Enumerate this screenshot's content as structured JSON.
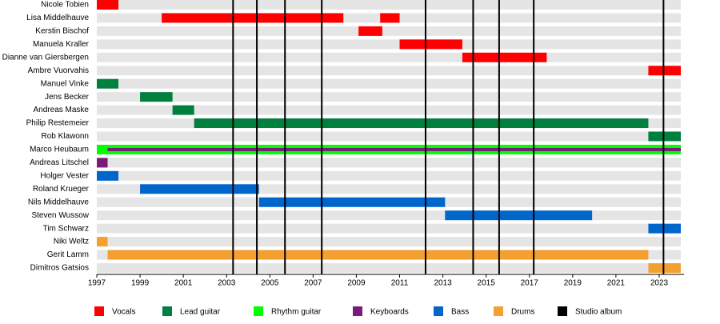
{
  "chart_data": {
    "type": "timeline",
    "categories": [
      "Nicole Tobien",
      "Lisa Middelhauve",
      "Kerstin Bischof",
      "Manuela Kraller",
      "Dianne van Giersbergen",
      "Ambre Vuorvahis",
      "Manuel Vinke",
      "Jens Becker",
      "Andreas Maske",
      "Philip Restemeier",
      "Rob Klawonn",
      "Marco Heubaum",
      "Andreas Litschel",
      "Holger Vester",
      "Roland Krueger",
      "Nils Middelhauve",
      "Steven Wussow",
      "Tim Schwarz",
      "Niki Weltz",
      "Gerit Lamm",
      "Dimitros Gatsios"
    ],
    "xlim": [
      1997,
      2024
    ],
    "xticks": [
      1997,
      1999,
      2001,
      2003,
      2005,
      2007,
      2009,
      2011,
      2013,
      2015,
      2017,
      2019,
      2021,
      2023
    ],
    "series": [
      {
        "name": "Vocals",
        "color": "#ff0000",
        "spans": [
          {
            "member": "Nicole Tobien",
            "start": 1997,
            "end": 1998
          },
          {
            "member": "Lisa Middelhauve",
            "start": 2000,
            "end": 2008.4
          },
          {
            "member": "Lisa Middelhauve",
            "start": 2010.1,
            "end": 2011
          },
          {
            "member": "Kerstin Bischof",
            "start": 2009.1,
            "end": 2010.2
          },
          {
            "member": "Manuela Kraller",
            "start": 2011,
            "end": 2013.9
          },
          {
            "member": "Dianne van Giersbergen",
            "start": 2013.9,
            "end": 2017.8
          },
          {
            "member": "Ambre Vuorvahis",
            "start": 2022.5,
            "end": 2024
          }
        ]
      },
      {
        "name": "Lead guitar",
        "color": "#007f3f",
        "spans": [
          {
            "member": "Manuel Vinke",
            "start": 1997,
            "end": 1998
          },
          {
            "member": "Jens Becker",
            "start": 1999,
            "end": 2000.5
          },
          {
            "member": "Andreas Maske",
            "start": 2000.5,
            "end": 2001.5
          },
          {
            "member": "Philip Restemeier",
            "start": 2001.5,
            "end": 2022.5
          },
          {
            "member": "Rob Klawonn",
            "start": 2022.5,
            "end": 2024
          }
        ]
      },
      {
        "name": "Rhythm guitar",
        "color": "#00ff00",
        "spans": [
          {
            "member": "Marco Heubaum",
            "start": 1997,
            "end": 2024
          }
        ]
      },
      {
        "name": "Keyboards",
        "color": "#7a1a7a",
        "spans": [
          {
            "member": "Marco Heubaum",
            "start": 1997.5,
            "end": 2024
          },
          {
            "member": "Andreas Litschel",
            "start": 1997,
            "end": 1997.5
          }
        ]
      },
      {
        "name": "Bass",
        "color": "#0066cc",
        "spans": [
          {
            "member": "Holger Vester",
            "start": 1997,
            "end": 1998
          },
          {
            "member": "Roland Krueger",
            "start": 1999,
            "end": 2004.5
          },
          {
            "member": "Nils Middelhauve",
            "start": 2004.5,
            "end": 2013.1
          },
          {
            "member": "Steven Wussow",
            "start": 2013.1,
            "end": 2019.9
          },
          {
            "member": "Tim Schwarz",
            "start": 2022.5,
            "end": 2024
          }
        ]
      },
      {
        "name": "Drums",
        "color": "#f4a030",
        "spans": [
          {
            "member": "Niki Weltz",
            "start": 1997,
            "end": 1997.5
          },
          {
            "member": "Gerit Lamm",
            "start": 1997.5,
            "end": 2022.5
          },
          {
            "member": "Dimitros Gatsios",
            "start": 2022.5,
            "end": 2024
          }
        ]
      }
    ],
    "albums": {
      "name": "Studio album",
      "color": "#000000",
      "values": [
        2003.3,
        2004.4,
        2005.7,
        2007.4,
        2012.2,
        2014.4,
        2015.6,
        2017.2,
        2023.2
      ]
    }
  }
}
